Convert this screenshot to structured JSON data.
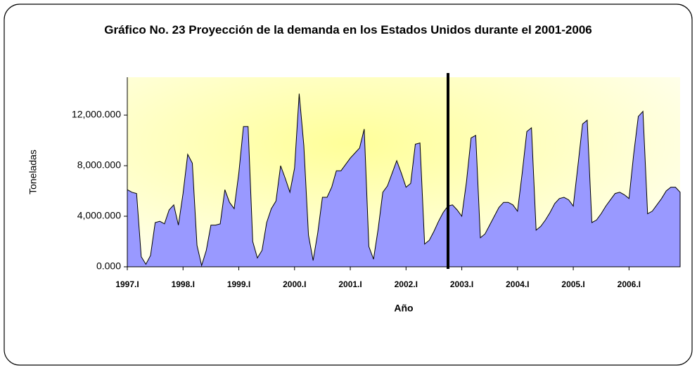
{
  "chart_data": {
    "type": "area",
    "title": "Gráfico No. 23 Proyección de la demanda en los Estados Unidos durante el 2001-2006",
    "x_label": "Año",
    "y_label": "Toneladas",
    "color": "#9999ff",
    "categories": [
      "1997.I",
      null,
      null,
      null,
      null,
      null,
      null,
      null,
      null,
      null,
      null,
      null,
      "1998.I",
      null,
      null,
      null,
      null,
      null,
      null,
      null,
      null,
      null,
      null,
      null,
      "1999.I",
      null,
      null,
      null,
      null,
      null,
      null,
      null,
      null,
      null,
      null,
      null,
      "2000.I",
      null,
      null,
      null,
      null,
      null,
      null,
      null,
      null,
      null,
      null,
      null,
      "2001.I",
      null,
      null,
      null,
      null,
      null,
      null,
      null,
      null,
      null,
      null,
      null,
      "2002.I",
      null,
      null,
      null,
      null,
      null,
      null,
      null,
      null,
      null,
      null,
      null,
      "2003.I",
      null,
      null,
      null,
      null,
      null,
      null,
      null,
      null,
      null,
      null,
      null,
      "2004.I",
      null,
      null,
      null,
      null,
      null,
      null,
      null,
      null,
      null,
      null,
      null,
      "2005.I",
      null,
      null,
      null,
      null,
      null,
      null,
      null,
      null,
      null,
      null,
      null,
      "2006.I",
      null,
      null,
      null,
      null,
      null,
      null,
      null,
      null,
      null,
      null,
      null
    ],
    "values": [
      6100,
      5900,
      5800,
      800,
      200,
      900,
      3500,
      3600,
      3400,
      4500,
      4900,
      3300,
      5800,
      8900,
      8200,
      1700,
      100,
      1300,
      3300,
      3300,
      3400,
      6100,
      5100,
      4600,
      7400,
      11100,
      11100,
      2000,
      700,
      1300,
      3500,
      4600,
      5200,
      8000,
      7000,
      5900,
      7800,
      13700,
      9600,
      2500,
      500,
      2700,
      5500,
      5500,
      6300,
      7600,
      7600,
      8100,
      8600,
      9000,
      9400,
      10900,
      1600,
      600,
      3000,
      5900,
      6400,
      7400,
      8400,
      7400,
      6300,
      6600,
      9700,
      9800,
      1800,
      2100,
      2800,
      3600,
      4300,
      4800,
      4900,
      4500,
      4000,
      6700,
      10200,
      10400,
      2300,
      2600,
      3300,
      4000,
      4700,
      5100,
      5100,
      4900,
      4400,
      7400,
      10700,
      11000,
      2900,
      3200,
      3700,
      4300,
      5000,
      5400,
      5500,
      5300,
      4800,
      8000,
      11300,
      11600,
      3500,
      3700,
      4200,
      4800,
      5300,
      5800,
      5900,
      5700,
      5400,
      8900,
      11900,
      12300,
      4200,
      4400,
      4900,
      5400,
      6000,
      6300,
      6300,
      5900
    ],
    "ylim": [
      0,
      15000
    ],
    "yticks": [
      {
        "value": 0,
        "label": "0.000"
      },
      {
        "value": 4000,
        "label": "4,000.000"
      },
      {
        "value": 8000,
        "label": "8,000.000"
      },
      {
        "value": 12000,
        "label": "12,000.000"
      }
    ]
  }
}
